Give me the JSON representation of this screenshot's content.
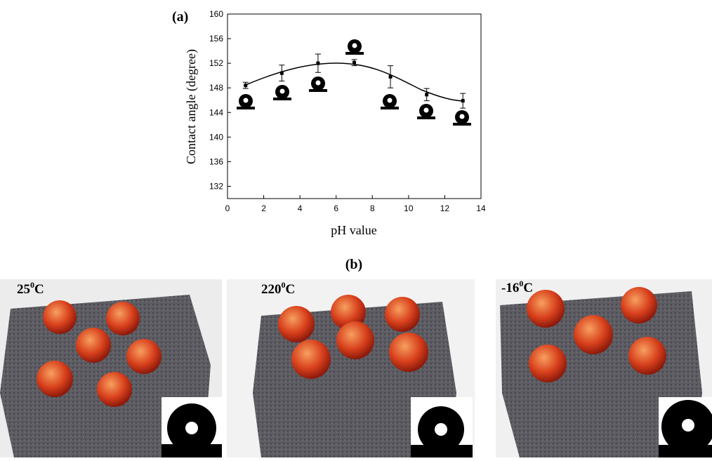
{
  "chart_data": {
    "type": "scatter",
    "label": "(a)",
    "xlabel": "pH value",
    "ylabel": "Contact angle (degree)",
    "x": [
      1,
      3,
      5,
      7,
      9,
      11,
      13
    ],
    "series": [
      {
        "color": "#000000",
        "values": [
          148.4,
          150.4,
          152.0,
          152.1,
          149.8,
          146.9,
          145.9
        ],
        "errors": [
          0.5,
          1.3,
          1.5,
          0.5,
          1.8,
          1.0,
          1.2
        ]
      }
    ],
    "xlim": [
      0,
      14
    ],
    "xticks": [
      0,
      2,
      4,
      6,
      8,
      10,
      12,
      14
    ],
    "ylim": [
      130,
      160
    ],
    "yticks": [
      132,
      136,
      140,
      144,
      148,
      152,
      156,
      160
    ]
  },
  "photos": {
    "label": "(b)",
    "items": [
      {
        "temp": "25",
        "sup": "0",
        "unit": "C"
      },
      {
        "temp": "220",
        "sup": "0",
        "unit": "C"
      },
      {
        "temp": "-16",
        "sup": "0",
        "unit": "C"
      }
    ]
  }
}
